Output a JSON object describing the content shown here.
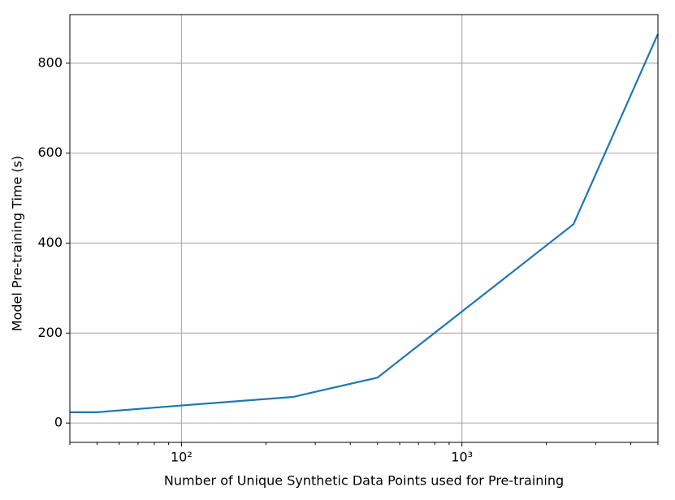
{
  "chart_data": {
    "type": "line",
    "x_label": "Number of Unique Synthetic Data Points used for Pre-training",
    "y_label": "Model Pre-training Time (s)",
    "x": [
      40,
      50,
      100,
      250,
      500,
      2500,
      5000
    ],
    "series": [
      {
        "color": "#1f77b4",
        "values": [
          24,
          24,
          39,
          58,
          101,
          442,
          865
        ]
      }
    ],
    "x_scale": "log",
    "xlim": [
      40,
      5000
    ],
    "xticks": [
      {
        "value": 100,
        "label": "10²"
      },
      {
        "value": 1000,
        "label": "10³"
      }
    ],
    "xminorticks": [
      40,
      50,
      60,
      70,
      80,
      90,
      200,
      300,
      400,
      500,
      600,
      700,
      800,
      900,
      2000,
      3000,
      4000,
      5000
    ],
    "ylim": [
      -43,
      908
    ],
    "yticks": [
      0,
      200,
      400,
      600,
      800
    ],
    "grid": true
  }
}
